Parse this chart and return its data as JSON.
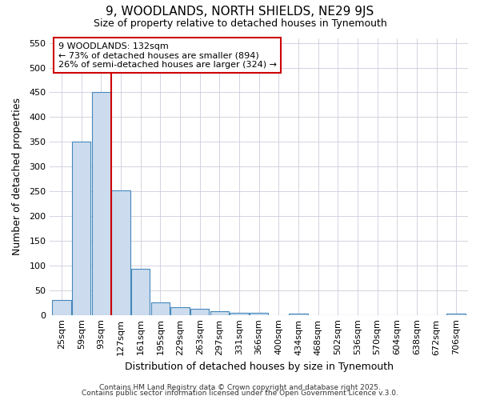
{
  "title1": "9, WOODLANDS, NORTH SHIELDS, NE29 9JS",
  "title2": "Size of property relative to detached houses in Tynemouth",
  "xlabel": "Distribution of detached houses by size in Tynemouth",
  "ylabel": "Number of detached properties",
  "categories": [
    "25sqm",
    "59sqm",
    "93sqm",
    "127sqm",
    "161sqm",
    "195sqm",
    "229sqm",
    "263sqm",
    "297sqm",
    "331sqm",
    "366sqm",
    "400sqm",
    "434sqm",
    "468sqm",
    "502sqm",
    "536sqm",
    "570sqm",
    "604sqm",
    "638sqm",
    "672sqm",
    "706sqm"
  ],
  "values": [
    30,
    350,
    450,
    252,
    93,
    26,
    15,
    12,
    8,
    4,
    4,
    0,
    3,
    0,
    0,
    0,
    0,
    0,
    0,
    0,
    3
  ],
  "bar_color": "#ccdcee",
  "bar_edgecolor": "#4488bb",
  "vline_color": "#cc0000",
  "annotation_text": "9 WOODLANDS: 132sqm\n← 73% of detached houses are smaller (894)\n26% of semi-detached houses are larger (324) →",
  "annotation_box_facecolor": "#ffffff",
  "annotation_border_color": "#cc0000",
  "ylim": [
    0,
    560
  ],
  "yticks": [
    0,
    50,
    100,
    150,
    200,
    250,
    300,
    350,
    400,
    450,
    500,
    550
  ],
  "grid_color": "#ccccdd",
  "footer1": "Contains HM Land Registry data © Crown copyright and database right 2025.",
  "footer2": "Contains public sector information licensed under the Open Government Licence v.3.0.",
  "bg_color": "#ffffff",
  "title1_fontsize": 11,
  "title2_fontsize": 9,
  "xlabel_fontsize": 9,
  "ylabel_fontsize": 9,
  "tick_fontsize": 8,
  "footer_fontsize": 6.5
}
